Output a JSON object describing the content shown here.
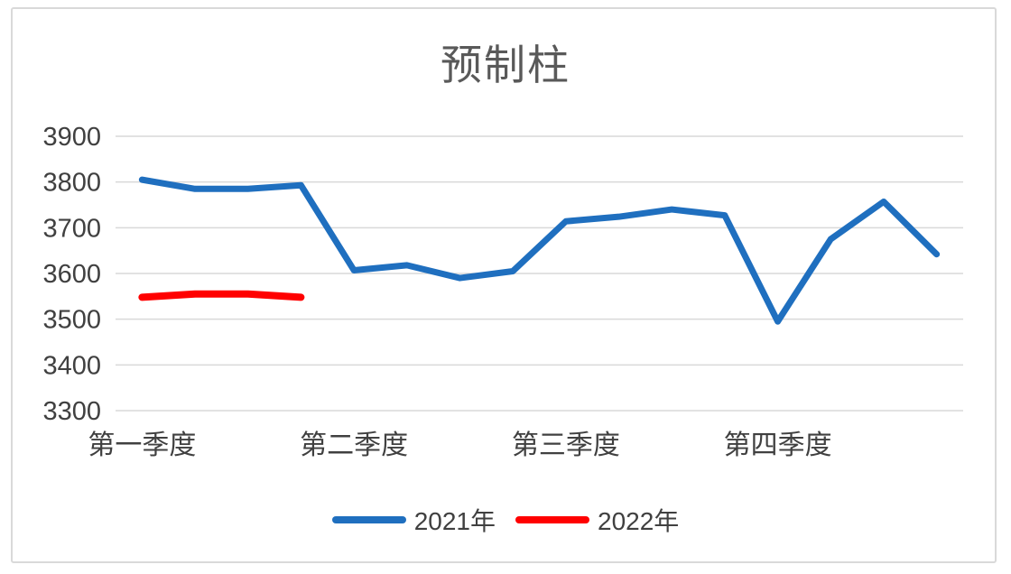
{
  "chart": {
    "title": "预制柱",
    "colors": {
      "series_2021": "#1f6fbf",
      "series_2022": "#ff0000",
      "gridline": "#d9d9d9",
      "axis_text": "#404040",
      "title_text": "#595959",
      "frame_border": "#d9d9d9",
      "background": "#ffffff"
    }
  },
  "chart_data": {
    "type": "line",
    "title": "预制柱",
    "xlabel": "",
    "ylabel": "",
    "ylim": [
      3300,
      3900
    ],
    "y_ticks": [
      3900,
      3800,
      3700,
      3600,
      3500,
      3400,
      3300
    ],
    "n_points": 16,
    "x_tick_labels": [
      "第一季度",
      "第二季度",
      "第三季度",
      "第四季度"
    ],
    "x_tick_point_index": [
      1,
      5,
      9,
      13
    ],
    "grid": "horizontal",
    "legend_position": "bottom",
    "series": [
      {
        "name": "2021年",
        "color": "#1f6fbf",
        "values": [
          3805,
          3785,
          3785,
          3793,
          3607,
          3618,
          3590,
          3605,
          3714,
          3724,
          3740,
          3727,
          3495,
          3675,
          3757,
          3642
        ]
      },
      {
        "name": "2022年",
        "color": "#ff0000",
        "values": [
          3548,
          3555,
          3555,
          3548
        ]
      }
    ]
  }
}
